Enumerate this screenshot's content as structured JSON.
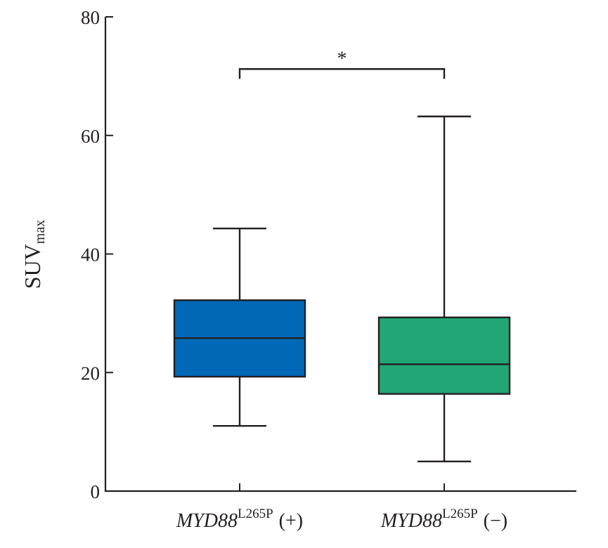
{
  "chart_data": {
    "type": "box",
    "ylabel": "SUV",
    "ylabel_sub": "max",
    "ylim": [
      0,
      80
    ],
    "yticks": [
      "0",
      "20",
      "40",
      "60",
      "80"
    ],
    "grid": false,
    "categories": [
      {
        "gene": "MYD88",
        "mutation": "L265P",
        "status": "(+)"
      },
      {
        "gene": "MYD88",
        "mutation": "L265P",
        "status": "(−)"
      }
    ],
    "boxes": [
      {
        "min": 11.0,
        "q1": 19.3,
        "median": 25.8,
        "q3": 32.2,
        "max": 44.3,
        "color": "#0068b7"
      },
      {
        "min": 5.0,
        "q1": 16.4,
        "median": 21.4,
        "q3": 29.3,
        "max": 63.2,
        "color": "#22a676"
      }
    ],
    "significance": {
      "between": [
        0,
        1
      ],
      "label": "*",
      "y": 71.2
    }
  }
}
